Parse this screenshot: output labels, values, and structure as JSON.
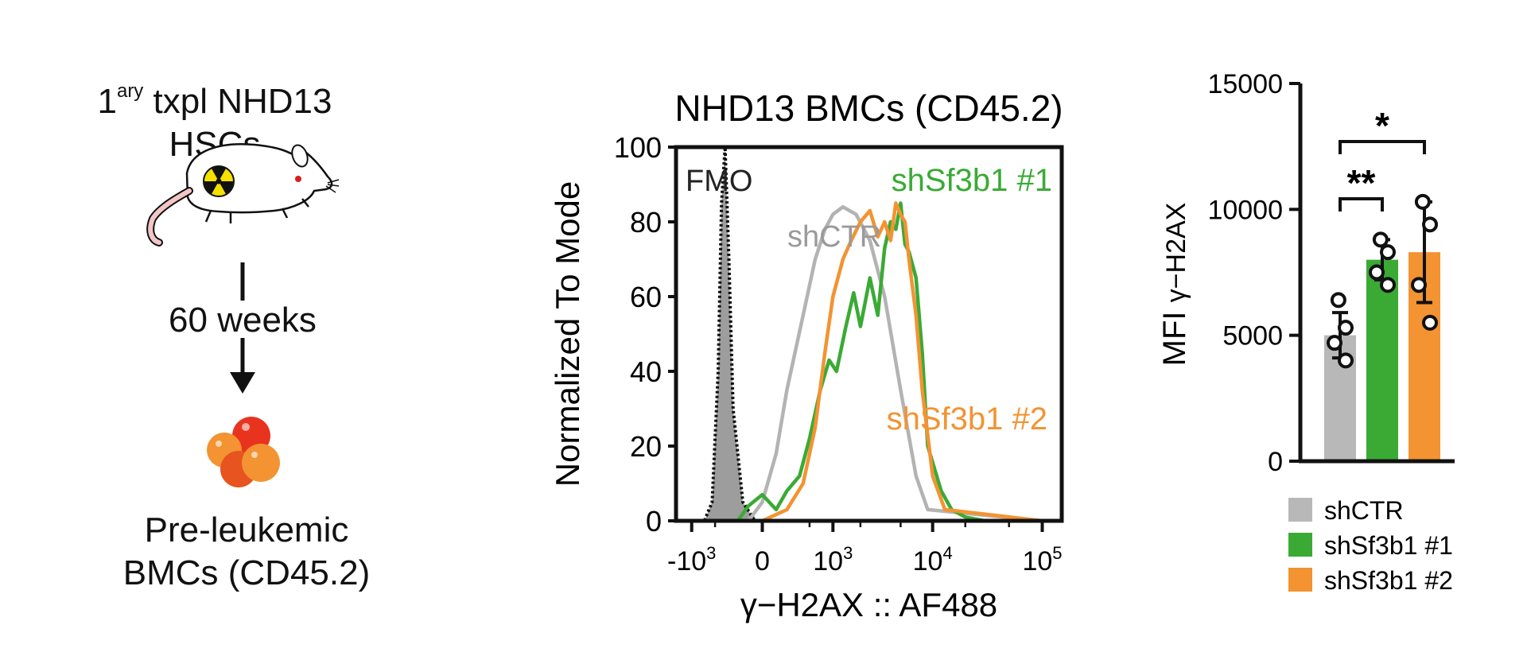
{
  "schematic": {
    "top_label_main": "1",
    "top_label_sup": "ary",
    "top_label_rest": " txpl NHD13",
    "top_label_line2": "HSCs",
    "arrow_label": "60 weeks",
    "bottom_label_line1": "Pre-leukemic",
    "bottom_label_line2": "BMCs (CD45.2)",
    "icons": [
      "irradiated-mouse-icon",
      "cell-cluster-icon"
    ]
  },
  "chart_data": [
    {
      "type": "line",
      "title": "NHD13 BMCs (CD45.2)",
      "xlabel": "γ−H2AX :: AF488",
      "ylabel": "Normalized To Mode",
      "ylim": [
        0,
        100
      ],
      "y_ticks": [
        "0",
        "20",
        "40",
        "60",
        "80",
        "100"
      ],
      "x_ticks": [
        {
          "base": "-10",
          "exp": "3",
          "x": -1000
        },
        {
          "base": "0",
          "exp": "",
          "x": 0
        },
        {
          "base": "10",
          "exp": "3",
          "x": 1000
        },
        {
          "base": "10",
          "exp": "4",
          "x": 10000
        },
        {
          "base": "10",
          "exp": "5",
          "x": 100000
        }
      ],
      "x_scale": "biexponential",
      "series": [
        {
          "name": "FMO",
          "color": "#111111",
          "style": "dotted-filled",
          "x": [
            -1500,
            -700,
            -550,
            -450,
            -400,
            -350,
            -300,
            -250,
            -150,
            -50,
            500,
            100000
          ],
          "y": [
            0,
            0,
            5,
            40,
            85,
            100,
            70,
            30,
            5,
            0,
            0,
            0
          ]
        },
        {
          "name": "shCTR",
          "color": "#b3b3b3",
          "style": "line",
          "x": [
            -1500,
            -100,
            0,
            100,
            200,
            400,
            600,
            800,
            1000,
            1300,
            1800,
            2500,
            3500,
            5000,
            7000,
            9000,
            100000
          ],
          "y": [
            0,
            0,
            5,
            18,
            35,
            55,
            70,
            78,
            82,
            84,
            82,
            75,
            60,
            35,
            12,
            3,
            0
          ]
        },
        {
          "name": "shSf3b1 #1",
          "color": "#3aaa35",
          "style": "line",
          "x": [
            -1500,
            -200,
            -100,
            0,
            100,
            200,
            350,
            500,
            700,
            900,
            1100,
            1400,
            1700,
            2000,
            2500,
            3000,
            3500,
            4000,
            4500,
            5000,
            5500,
            6000,
            7000,
            8000,
            9000,
            12000,
            15000,
            20000,
            30000,
            100000
          ],
          "y": [
            0,
            0,
            4,
            7,
            3,
            8,
            12,
            22,
            35,
            43,
            40,
            52,
            61,
            52,
            65,
            55,
            73,
            80,
            78,
            85,
            74,
            72,
            65,
            45,
            20,
            8,
            3,
            1,
            0,
            0
          ]
        },
        {
          "name": "shSf3b1 #2",
          "color": "#f39332",
          "style": "line",
          "x": [
            -1500,
            0,
            200,
            400,
            600,
            800,
            1000,
            1300,
            1600,
            2000,
            2500,
            3000,
            3500,
            4000,
            4500,
            5000,
            5500,
            6000,
            7000,
            8000,
            10000,
            13000,
            100000
          ],
          "y": [
            0,
            0,
            3,
            10,
            25,
            45,
            60,
            70,
            75,
            80,
            83,
            76,
            80,
            75,
            85,
            82,
            80,
            70,
            55,
            35,
            12,
            3,
            0
          ]
        }
      ],
      "annotations": [
        "FMO",
        "shCTR",
        "shSf3b1 #1",
        "shSf3b1 #2"
      ]
    },
    {
      "type": "bar",
      "ylabel_main": "MFI ",
      "ylabel_greek": "γ−H2AX",
      "ylim": [
        0,
        15000
      ],
      "y_ticks": [
        "0",
        "5000",
        "10000",
        "15000"
      ],
      "categories": [
        "shCTR",
        "shSf3b1 #1",
        "shSf3b1 #2"
      ],
      "values": [
        5000,
        8000,
        8300
      ],
      "error": [
        900,
        800,
        2000
      ],
      "colors": [
        "#b8b8b8",
        "#3aaa35",
        "#f39332"
      ],
      "points": [
        [
          6400,
          5300,
          4700,
          4000
        ],
        [
          8800,
          8300,
          7500,
          7000
        ],
        [
          10300,
          9400,
          7000,
          5500
        ]
      ],
      "significance": [
        {
          "from": 0,
          "to": 1,
          "label": "**"
        },
        {
          "from": 0,
          "to": 2,
          "label": "*"
        }
      ],
      "legend": [
        "shCTR",
        "shSf3b1 #1",
        "shSf3b1 #2"
      ]
    }
  ]
}
